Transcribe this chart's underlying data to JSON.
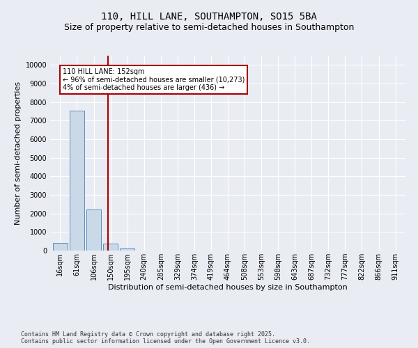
{
  "title_line1": "110, HILL LANE, SOUTHAMPTON, SO15 5BA",
  "title_line2": "Size of property relative to semi-detached houses in Southampton",
  "xlabel": "Distribution of semi-detached houses by size in Southampton",
  "ylabel": "Number of semi-detached properties",
  "footnote": "Contains HM Land Registry data © Crown copyright and database right 2025.\nContains public sector information licensed under the Open Government Licence v3.0.",
  "categories": [
    "16sqm",
    "61sqm",
    "106sqm",
    "150sqm",
    "195sqm",
    "240sqm",
    "285sqm",
    "329sqm",
    "374sqm",
    "419sqm",
    "464sqm",
    "508sqm",
    "553sqm",
    "598sqm",
    "643sqm",
    "687sqm",
    "732sqm",
    "777sqm",
    "822sqm",
    "866sqm",
    "911sqm"
  ],
  "values": [
    430,
    7550,
    2220,
    390,
    115,
    2,
    1,
    0,
    0,
    0,
    0,
    0,
    0,
    0,
    0,
    0,
    0,
    0,
    0,
    0,
    0
  ],
  "bar_color": "#c9d9e8",
  "bar_edge_color": "#5b8db8",
  "property_line_x": 2.87,
  "property_line_color": "#aa0000",
  "annotation_box_color": "#aa0000",
  "annotation_text": "110 HILL LANE: 152sqm\n← 96% of semi-detached houses are smaller (10,273)\n4% of semi-detached houses are larger (436) →",
  "ylim": [
    0,
    10500
  ],
  "yticks": [
    0,
    1000,
    2000,
    3000,
    4000,
    5000,
    6000,
    7000,
    8000,
    9000,
    10000
  ],
  "bg_color": "#eaecf4",
  "plot_bg_color": "#eaecf4",
  "grid_color": "#ffffff",
  "title_fontsize": 10,
  "subtitle_fontsize": 9,
  "label_fontsize": 8,
  "tick_fontsize": 7,
  "footnote_fontsize": 6
}
